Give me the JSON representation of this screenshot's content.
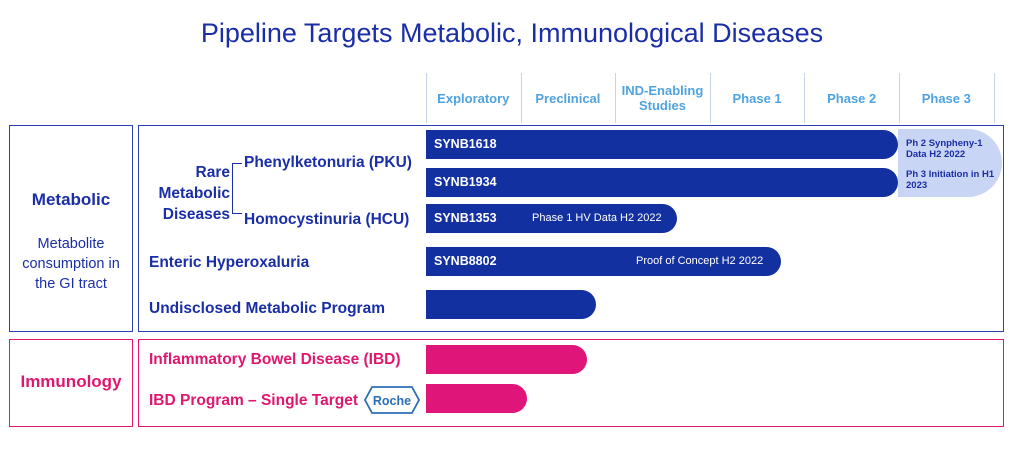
{
  "title": "Pipeline Targets Metabolic, Immunological Diseases",
  "colors": {
    "title": "#1a2ea6",
    "metabolic_bar": "#1330a0",
    "immunology_bar": "#e0157a",
    "header": "#4fa3e0",
    "callout": "#c9d5f5"
  },
  "phases": [
    "Exploratory",
    "Preclinical",
    "IND-Enabling Studies",
    "Phase 1",
    "Phase 2",
    "Phase 3"
  ],
  "categories": {
    "metabolic": {
      "title": "Metabolic",
      "subtitle": "Metabolite consumption in the GI tract"
    },
    "immunology": {
      "title": "Immunology"
    }
  },
  "rare_group_label": "Rare Metabolic Diseases",
  "indications": {
    "pku": "Phenylketonuria (PKU)",
    "hcu": "Homocystinuria (HCU)",
    "eh": "Enteric Hyperoxaluria",
    "umd": "Undisclosed Metabolic Program",
    "ibd": "Inflammatory Bowel Disease (IBD)",
    "ibd_single": "IBD Program – Single Target"
  },
  "partner_logo": "Roche",
  "callouts": {
    "c1": "Ph 2 Synpheny-1 Data  H2 2022",
    "c2": "Ph 3 Initiation in H1 2023"
  },
  "chart_data": {
    "type": "bar",
    "orientation": "horizontal",
    "title": "Pipeline Targets Metabolic, Immunological Diseases",
    "x_categories": [
      "Exploratory",
      "Preclinical",
      "IND-Enabling Studies",
      "Phase 1",
      "Phase 2",
      "Phase 3"
    ],
    "note": "progress value = number of phase columns reached (0–6)",
    "bars": [
      {
        "program": "SYNB1618",
        "indication": "Phenylketonuria (PKU)",
        "category": "Metabolic",
        "progress": 4.99,
        "note": ""
      },
      {
        "program": "SYNB1934",
        "indication": "Phenylketonuria (PKU)",
        "category": "Metabolic",
        "progress": 4.99,
        "note": ""
      },
      {
        "program": "SYNB1353",
        "indication": "Homocystinuria (HCU)",
        "category": "Metabolic",
        "progress": 2.65,
        "note": "Phase 1 HV Data H2 2022"
      },
      {
        "program": "SYNB8802",
        "indication": "Enteric Hyperoxaluria",
        "category": "Metabolic",
        "progress": 3.75,
        "note": "Proof of Concept H2 2022"
      },
      {
        "program": "",
        "indication": "Undisclosed Metabolic Program",
        "category": "Metabolic",
        "progress": 1.8,
        "note": ""
      },
      {
        "program": "",
        "indication": "Inflammatory Bowel Disease (IBD)",
        "category": "Immunology",
        "progress": 1.7,
        "note": ""
      },
      {
        "program": "",
        "indication": "IBD Program – Single Target",
        "category": "Immunology",
        "progress": 1.07,
        "note": ""
      }
    ]
  }
}
